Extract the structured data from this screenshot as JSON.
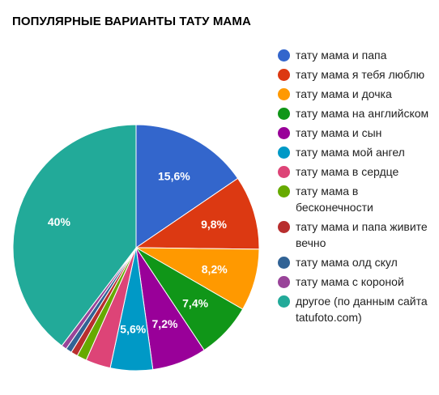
{
  "chart_data": {
    "type": "pie",
    "title": "ПОПУЛЯРНЫЕ ВАРИАНТЫ ТАТУ МАМА",
    "series": [
      {
        "name": "тату мама и папа",
        "value": 15.6,
        "label": "15,6%",
        "color": "#3366cc"
      },
      {
        "name": "тату мама я тебя люблю",
        "value": 9.8,
        "label": "9,8%",
        "color": "#dc3912"
      },
      {
        "name": "тату мама и дочка",
        "value": 8.2,
        "label": "8,2%",
        "color": "#ff9900"
      },
      {
        "name": "тату мама на английском",
        "value": 7.4,
        "label": "7,4%",
        "color": "#109618"
      },
      {
        "name": "тату мама и сын",
        "value": 7.2,
        "label": "7,2%",
        "color": "#990099"
      },
      {
        "name": "тату мама мой ангел",
        "value": 5.6,
        "label": "5,6%",
        "color": "#0099c6"
      },
      {
        "name": "тату мама в сердце",
        "value": 3.3,
        "label": "",
        "color": "#dd4477"
      },
      {
        "name": "тату мама в бесконечности",
        "value": 1.3,
        "label": "",
        "color": "#66aa00"
      },
      {
        "name": "тату мама и папа живите вечно",
        "value": 0.9,
        "label": "",
        "color": "#b82e2e"
      },
      {
        "name": "тату мама олд скул",
        "value": 0.8,
        "label": "",
        "color": "#316395"
      },
      {
        "name": "тату мама с короной",
        "value": 0.7,
        "label": "",
        "color": "#994499"
      },
      {
        "name": "другое (по данным сайта tatufoto.com)",
        "value": 40,
        "label": "40%",
        "color": "#22aa99"
      }
    ],
    "legend_position": "right"
  }
}
